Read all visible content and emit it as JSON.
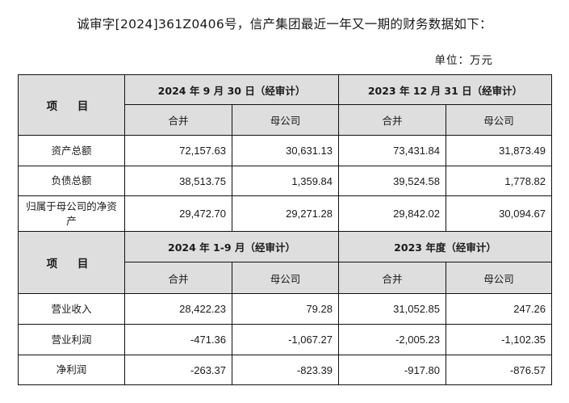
{
  "intro_text": "诚审字[2024]361Z0406号，信产集团最近一年又一期的财务数据如下：",
  "unit_label": "单位：万元",
  "balance_section": {
    "item_header": "项 目",
    "periods": [
      "2024 年 9 月 30 日（经审计）",
      "2023 年 12 月 31 日（经审计）"
    ],
    "sub_headers": [
      "合并",
      "母公司",
      "合并",
      "母公司"
    ],
    "rows": [
      {
        "label": "资产总额",
        "values": [
          "72,157.63",
          "30,631.13",
          "73,431.84",
          "31,873.49"
        ]
      },
      {
        "label": "负债总额",
        "values": [
          "38,513.75",
          "1,359.84",
          "39,524.58",
          "1,778.82"
        ]
      },
      {
        "label": "归属于母公司的净资产",
        "values": [
          "29,472.70",
          "29,271.28",
          "29,842.02",
          "30,094.67"
        ]
      }
    ]
  },
  "income_section": {
    "item_header": "项 目",
    "periods": [
      "2024 年 1-9 月（经审计）",
      "2023 年度（经审计）"
    ],
    "sub_headers": [
      "合并",
      "母公司",
      "合并",
      "母公司"
    ],
    "rows": [
      {
        "label": "营业收入",
        "values": [
          "28,422.23",
          "79.28",
          "31,052.85",
          "247.26"
        ]
      },
      {
        "label": "营业利润",
        "values": [
          "-471.36",
          "-1,067.27",
          "-2,005.23",
          "-1,102.35"
        ]
      },
      {
        "label": "净利润",
        "values": [
          "-263.37",
          "-823.39",
          "-917.80",
          "-876.57"
        ]
      }
    ]
  }
}
